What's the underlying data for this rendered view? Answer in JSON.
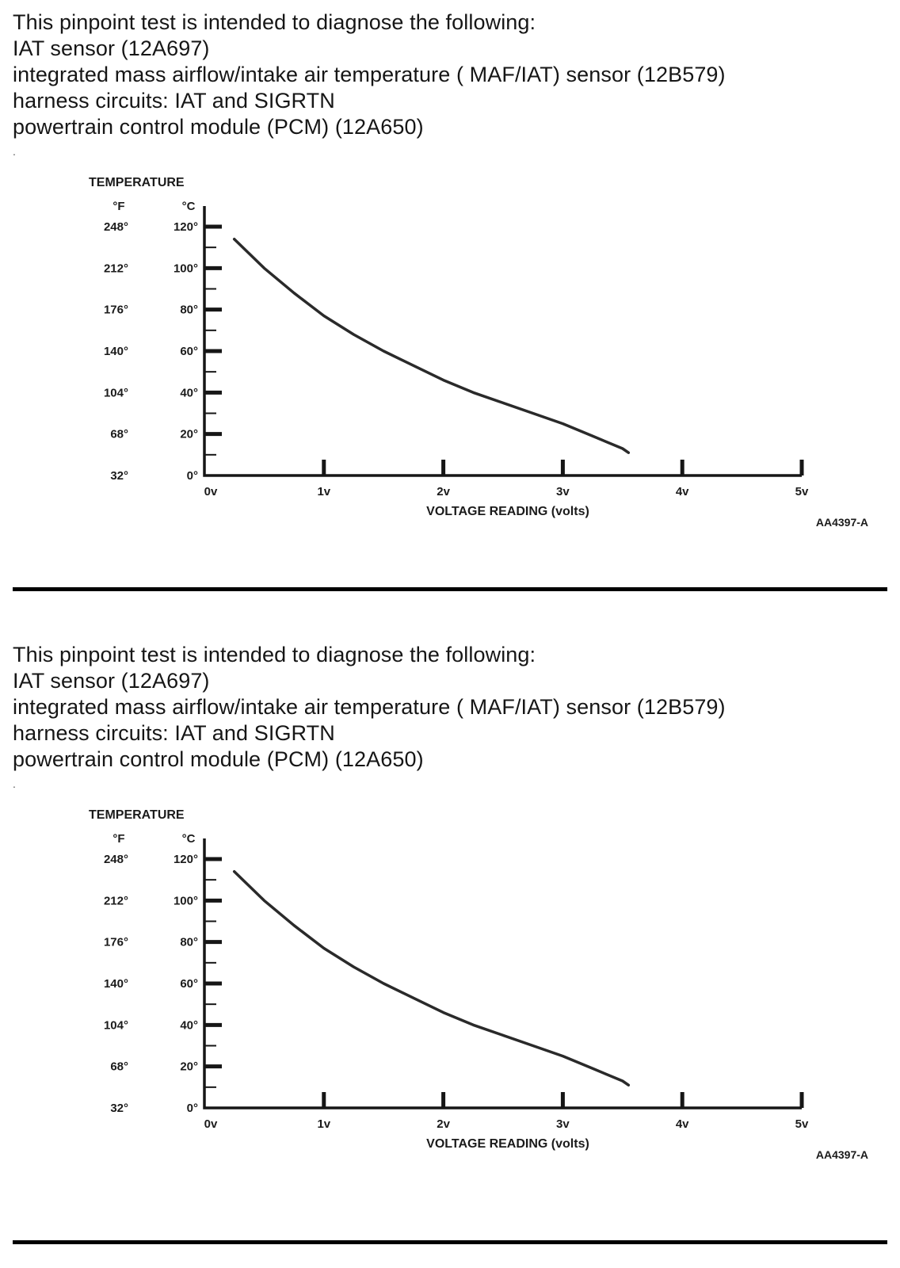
{
  "sections": [
    {
      "lines": [
        "This pinpoint test is intended to diagnose the following:",
        "IAT sensor (12A697)",
        "integrated mass airflow/intake air temperature ( MAF/IAT) sensor (12B579)",
        "harness circuits: IAT and SIGRTN",
        "powertrain control module (PCM) (12A650)"
      ],
      "stray_mark": "."
    },
    {
      "lines": [
        "This pinpoint test is intended to diagnose the following:",
        "IAT sensor (12A697)",
        "integrated mass airflow/intake air temperature ( MAF/IAT) sensor (12B579)",
        "harness circuits: IAT and SIGRTN",
        "powertrain control module (PCM) (12A650)"
      ],
      "stray_mark": "."
    }
  ],
  "chart_data": [
    {
      "type": "line",
      "title": "TEMPERATURE",
      "xlabel": "VOLTAGE READING (volts)",
      "figure_code": "AA4397-A",
      "y_axis_left_header": "°F",
      "y_axis_right_header": "°C",
      "xlim": [
        0,
        5
      ],
      "ylim_c": [
        0,
        120
      ],
      "x_ticks": [
        0,
        1,
        2,
        3,
        4,
        5
      ],
      "x_tick_labels": [
        "0v",
        "1v",
        "2v",
        "3v",
        "4v",
        "5v"
      ],
      "y_major_ticks_c": [
        0,
        20,
        40,
        60,
        80,
        100,
        120
      ],
      "y_minor_ticks_c": [
        10,
        30,
        50,
        70,
        90,
        110
      ],
      "y_labels_c": [
        "0°",
        "20°",
        "40°",
        "60°",
        "80°",
        "100°",
        "120°"
      ],
      "y_labels_f": [
        "32°",
        "68°",
        "104°",
        "140°",
        "176°",
        "212°",
        "248°"
      ],
      "curve_points": [
        [
          0.25,
          114
        ],
        [
          0.5,
          100
        ],
        [
          0.75,
          88
        ],
        [
          1.0,
          77
        ],
        [
          1.25,
          68
        ],
        [
          1.5,
          60
        ],
        [
          1.75,
          53
        ],
        [
          2.0,
          46
        ],
        [
          2.25,
          40
        ],
        [
          2.5,
          35
        ],
        [
          2.75,
          30
        ],
        [
          3.0,
          25
        ],
        [
          3.25,
          19
        ],
        [
          3.5,
          13
        ],
        [
          3.55,
          11
        ]
      ],
      "line_color": "#2a2a2a",
      "axis_color": "#161616",
      "text_color": "#1b1b1b",
      "legend": "none",
      "grid": "off"
    },
    {
      "type": "line",
      "title": "TEMPERATURE",
      "xlabel": "VOLTAGE READING (volts)",
      "figure_code": "AA4397-A",
      "y_axis_left_header": "°F",
      "y_axis_right_header": "°C",
      "xlim": [
        0,
        5
      ],
      "ylim_c": [
        0,
        120
      ],
      "x_ticks": [
        0,
        1,
        2,
        3,
        4,
        5
      ],
      "x_tick_labels": [
        "0v",
        "1v",
        "2v",
        "3v",
        "4v",
        "5v"
      ],
      "y_major_ticks_c": [
        0,
        20,
        40,
        60,
        80,
        100,
        120
      ],
      "y_minor_ticks_c": [
        10,
        30,
        50,
        70,
        90,
        110
      ],
      "y_labels_c": [
        "0°",
        "20°",
        "40°",
        "60°",
        "80°",
        "100°",
        "120°"
      ],
      "y_labels_f": [
        "32°",
        "68°",
        "104°",
        "140°",
        "176°",
        "212°",
        "248°"
      ],
      "curve_points": [
        [
          0.25,
          114
        ],
        [
          0.5,
          100
        ],
        [
          0.75,
          88
        ],
        [
          1.0,
          77
        ],
        [
          1.25,
          68
        ],
        [
          1.5,
          60
        ],
        [
          1.75,
          53
        ],
        [
          2.0,
          46
        ],
        [
          2.25,
          40
        ],
        [
          2.5,
          35
        ],
        [
          2.75,
          30
        ],
        [
          3.0,
          25
        ],
        [
          3.25,
          19
        ],
        [
          3.5,
          13
        ],
        [
          3.55,
          11
        ]
      ],
      "line_color": "#2a2a2a",
      "axis_color": "#161616",
      "text_color": "#1b1b1b",
      "legend": "none",
      "grid": "off"
    }
  ]
}
